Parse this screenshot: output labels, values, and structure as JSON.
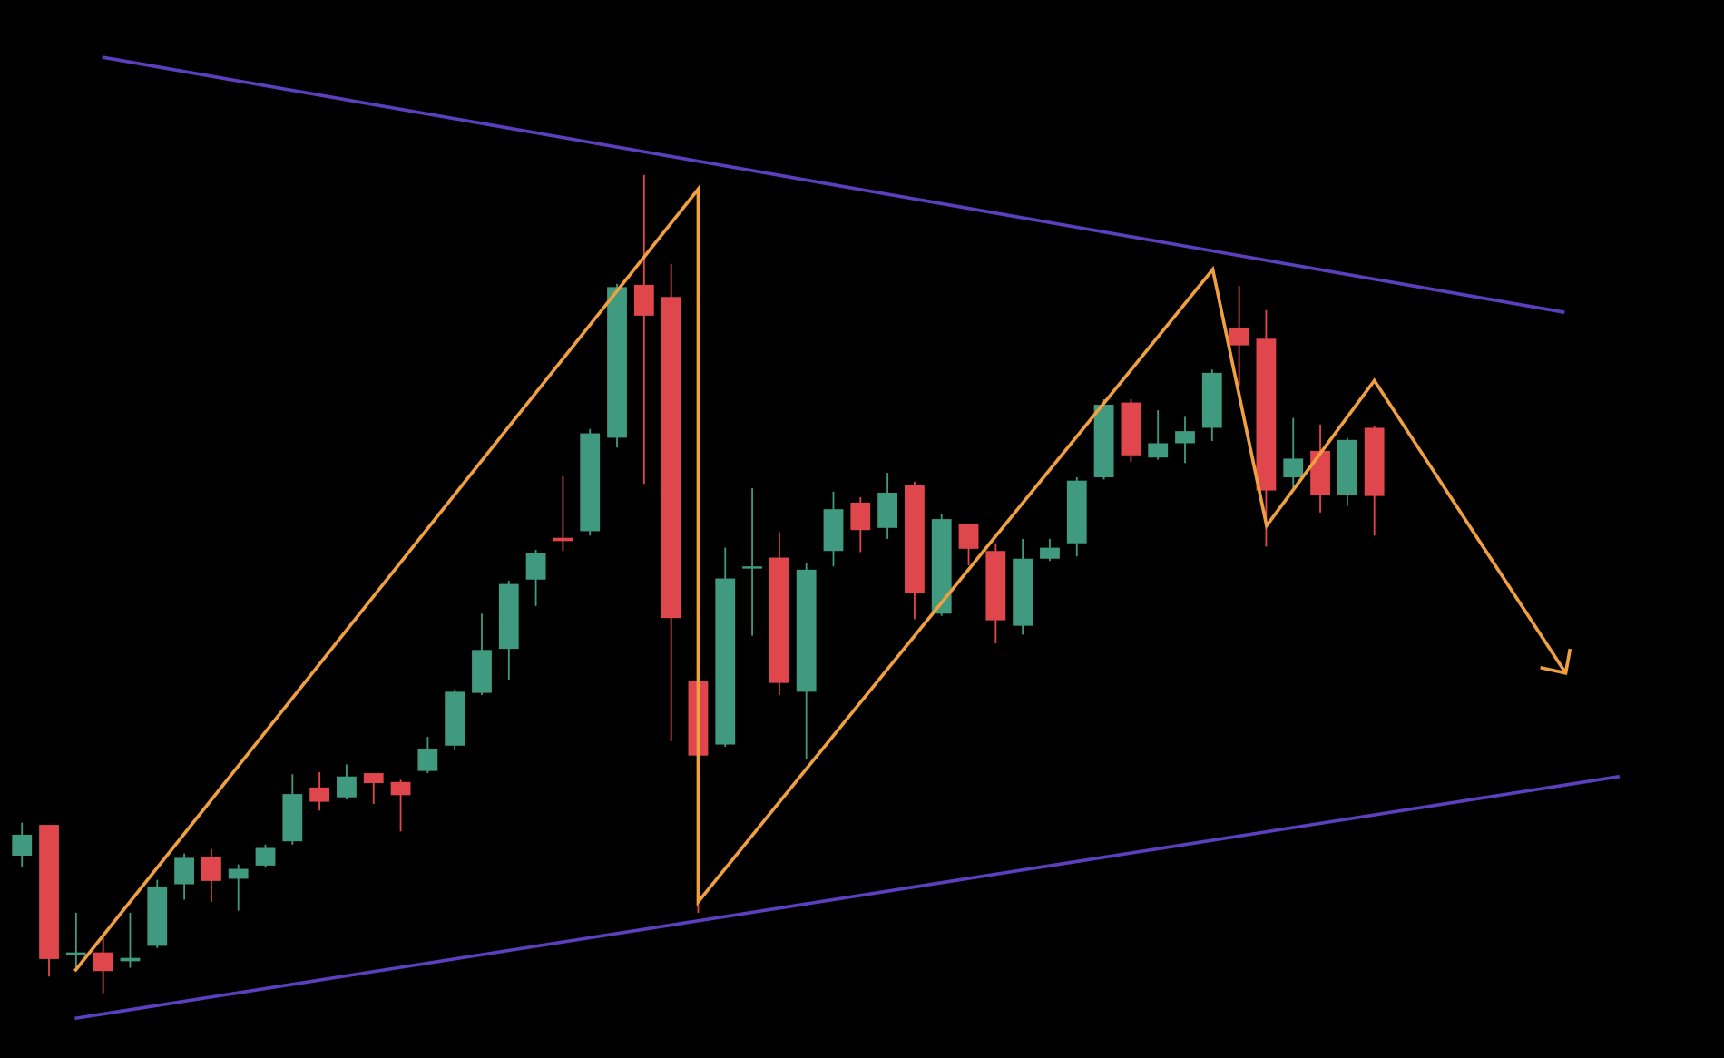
{
  "chart_data": {
    "type": "candlestick",
    "open": [
      184,
      212,
      94,
      96,
      88,
      102,
      158,
      183,
      163,
      175,
      197,
      246,
      237,
      259,
      251,
      261,
      284,
      332,
      372,
      435,
      473,
      479,
      564,
      703,
      692,
      343,
      285,
      445,
      455,
      333,
      461,
      505,
      482,
      521,
      404,
      486,
      461,
      393,
      454,
      468,
      528,
      596,
      546,
      559,
      573,
      664,
      654,
      528,
      552,
      512,
      573
    ],
    "high": [
      214,
      212,
      132,
      110,
      132,
      162,
      186,
      190,
      176,
      194,
      258,
      260,
      267,
      259,
      253,
      292,
      335,
      404,
      434,
      462,
      529,
      572,
      704,
      803,
      722,
      402,
      464,
      518,
      478,
      450,
      515,
      510,
      532,
      524,
      495,
      486,
      468,
      472,
      472,
      528,
      599,
      599,
      589,
      583,
      626,
      702,
      680,
      582,
      576,
      564,
      575
    ],
    "low": [
      174,
      74,
      82,
      59,
      82,
      100,
      144,
      142,
      134,
      173,
      194,
      225,
      235,
      231,
      206,
      259,
      280,
      330,
      344,
      411,
      461,
      475,
      555,
      522,
      288,
      132,
      283,
      384,
      330,
      272,
      447,
      460,
      472,
      399,
      402,
      448,
      377,
      385,
      452,
      456,
      526,
      542,
      544,
      541,
      561,
      612,
      465,
      516,
      496,
      502,
      475
    ],
    "close": [
      203,
      90,
      96,
      79,
      91,
      156,
      182,
      161,
      172,
      191,
      240,
      233,
      256,
      250,
      239,
      281,
      333,
      371,
      431,
      459,
      470,
      568,
      701,
      675,
      400,
      275,
      436,
      447,
      341,
      444,
      499,
      480,
      514,
      423,
      490,
      463,
      398,
      454,
      464,
      525,
      594,
      548,
      559,
      570,
      623,
      648,
      516,
      545,
      512,
      562,
      511
    ],
    "ylim": [
      0,
      962
    ],
    "up_color": "#3f9a80",
    "down_color": "#e0474c"
  }
}
